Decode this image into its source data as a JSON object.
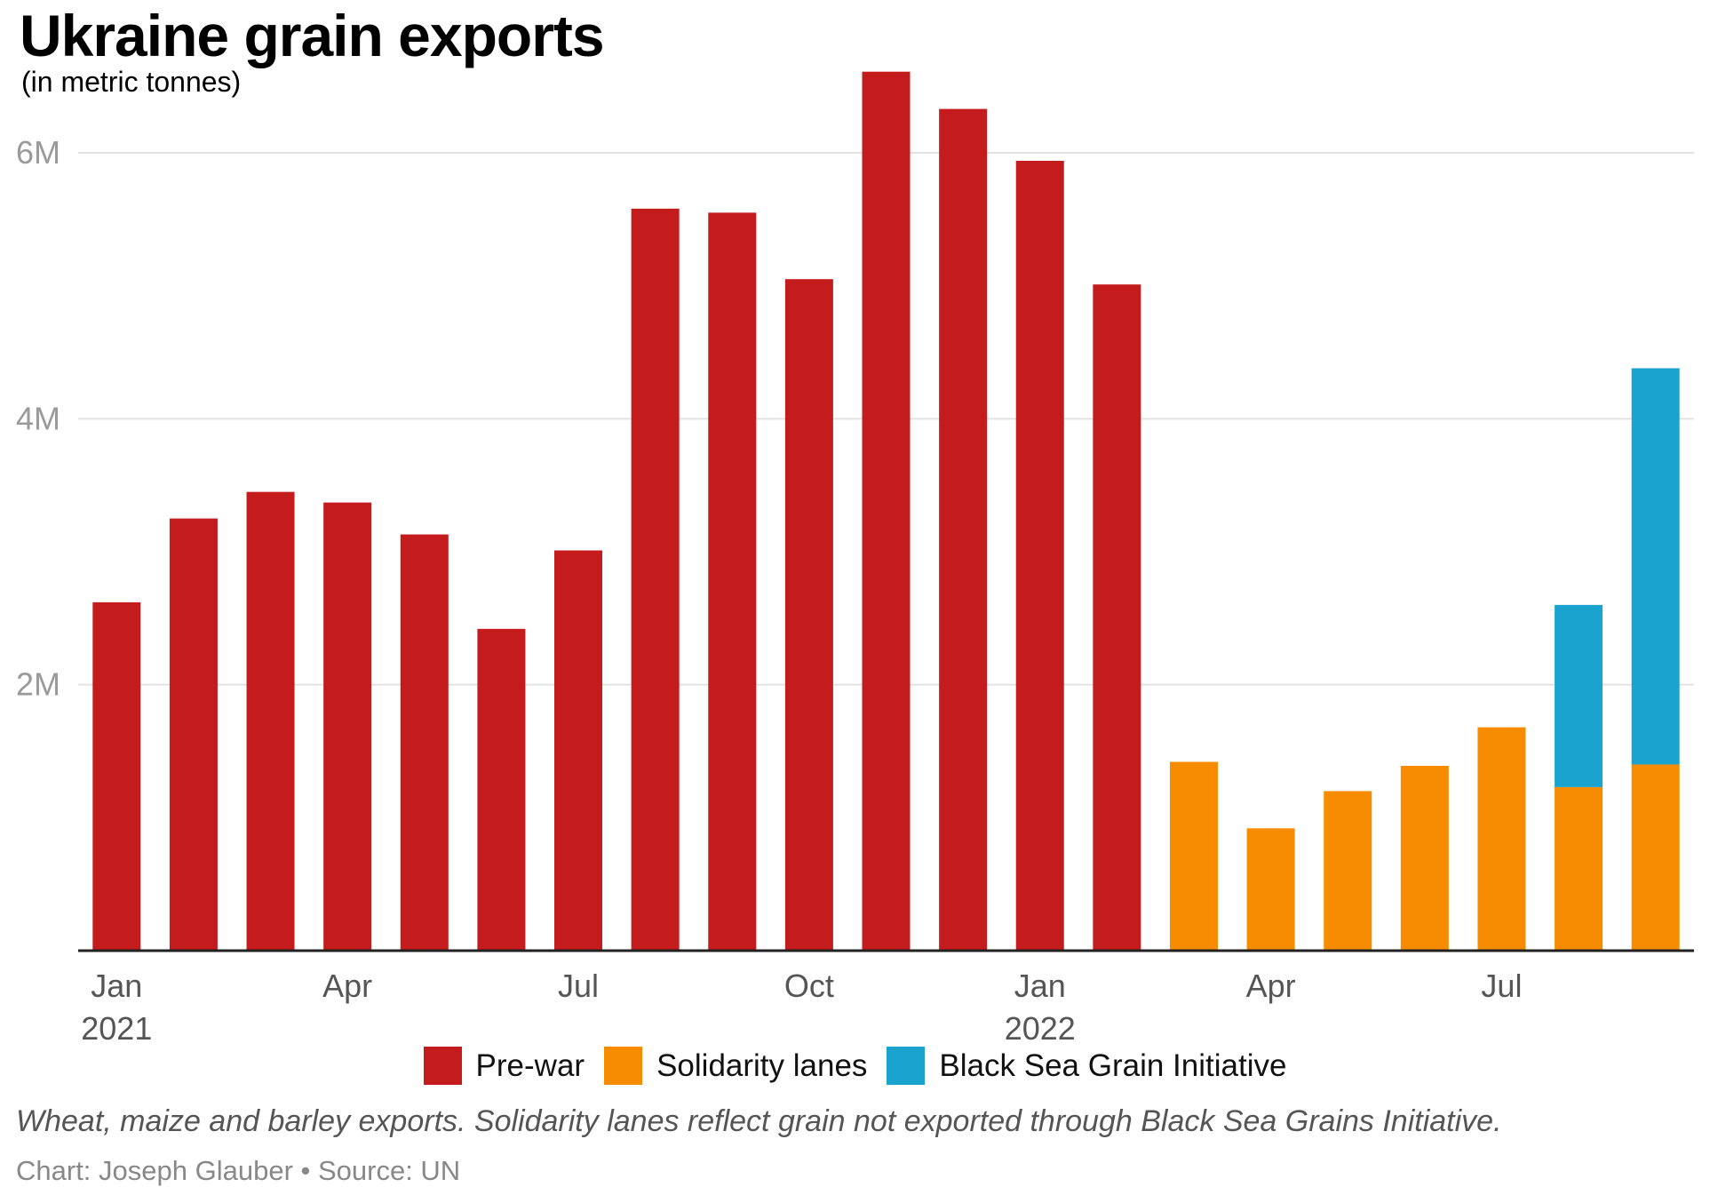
{
  "header": {
    "title": "Ukraine grain exports",
    "subtitle": "(in metric tonnes)"
  },
  "footer": {
    "note": "Wheat, maize and barley exports. Solidarity lanes reflect grain not exported through Black Sea Grains Initiative.",
    "credit": "Chart: Joseph Glauber • Source: UN"
  },
  "colors": {
    "pre_war": "#c41c1c",
    "solidarity": "#f78c00",
    "black_sea": "#1ba3cf"
  },
  "chart_data": {
    "type": "bar",
    "stacked": true,
    "title": "Ukraine grain exports",
    "subtitle": "(in metric tonnes)",
    "xlabel": "",
    "ylabel": "",
    "ylim": [
      0,
      6000000
    ],
    "yticks": [
      {
        "value": 2000000,
        "label": "2M"
      },
      {
        "value": 4000000,
        "label": "4M"
      },
      {
        "value": 6000000,
        "label": "6M"
      }
    ],
    "grid": true,
    "legend_position": "bottom",
    "categories": [
      "2021-01",
      "2021-02",
      "2021-03",
      "2021-04",
      "2021-05",
      "2021-06",
      "2021-07",
      "2021-08",
      "2021-09",
      "2021-10",
      "2021-11",
      "2021-12",
      "2022-01",
      "2022-02",
      "2022-03",
      "2022-04",
      "2022-05",
      "2022-06",
      "2022-07",
      "2022-08",
      "2022-09"
    ],
    "xticks": [
      {
        "index": 0,
        "line1": "Jan",
        "line2": "2021"
      },
      {
        "index": 3,
        "line1": "Apr",
        "line2": ""
      },
      {
        "index": 6,
        "line1": "Jul",
        "line2": ""
      },
      {
        "index": 9,
        "line1": "Oct",
        "line2": ""
      },
      {
        "index": 12,
        "line1": "Jan",
        "line2": "2022"
      },
      {
        "index": 15,
        "line1": "Apr",
        "line2": ""
      },
      {
        "index": 18,
        "line1": "Jul",
        "line2": ""
      }
    ],
    "series": [
      {
        "name": "Pre-war",
        "color": "#c41c1c",
        "values": [
          2620000,
          3250000,
          3450000,
          3370000,
          3130000,
          2420000,
          3010000,
          5580000,
          5550000,
          5050000,
          6610000,
          6330000,
          5940000,
          5010000,
          0,
          0,
          0,
          0,
          0,
          0,
          0
        ]
      },
      {
        "name": "Solidarity lanes",
        "color": "#f78c00",
        "values": [
          0,
          0,
          0,
          0,
          0,
          0,
          0,
          0,
          0,
          0,
          0,
          0,
          0,
          0,
          1420000,
          920000,
          1200000,
          1390000,
          1680000,
          1230000,
          1400000
        ]
      },
      {
        "name": "Black Sea Grain Initiative",
        "color": "#1ba3cf",
        "values": [
          0,
          0,
          0,
          0,
          0,
          0,
          0,
          0,
          0,
          0,
          0,
          0,
          0,
          0,
          0,
          0,
          0,
          0,
          0,
          1370000,
          2980000
        ]
      }
    ]
  }
}
